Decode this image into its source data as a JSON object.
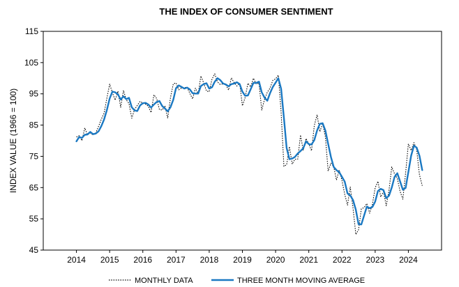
{
  "chart_data": {
    "type": "line",
    "title": "THE INDEX OF CONSUMER SENTIMENT",
    "xlabel": "",
    "ylabel": "INDEX VALUE (1966 = 100)",
    "ylim": [
      45,
      115
    ],
    "xlim": [
      2013.0,
      2025.0
    ],
    "yticks": [
      45,
      55,
      65,
      75,
      85,
      95,
      105,
      115
    ],
    "xticks": [
      2014,
      2015,
      2016,
      2017,
      2018,
      2019,
      2020,
      2021,
      2022,
      2023,
      2024
    ],
    "xtick_labels": [
      "2014",
      "2015",
      "2016",
      "2017",
      "2018",
      "2019",
      "2020",
      "2021",
      "2022",
      "2023",
      "2024"
    ],
    "grid": false,
    "legend_position": "bottom",
    "series": [
      {
        "name": "MONTHLY DATA",
        "style": "dotted",
        "color": "#000000",
        "x": [
          2014.0,
          2014.083,
          2014.167,
          2014.25,
          2014.333,
          2014.417,
          2014.5,
          2014.583,
          2014.667,
          2014.75,
          2014.833,
          2014.917,
          2015.0,
          2015.083,
          2015.167,
          2015.25,
          2015.333,
          2015.417,
          2015.5,
          2015.583,
          2015.667,
          2015.75,
          2015.833,
          2015.917,
          2016.0,
          2016.083,
          2016.167,
          2016.25,
          2016.333,
          2016.417,
          2016.5,
          2016.583,
          2016.667,
          2016.75,
          2016.833,
          2016.917,
          2017.0,
          2017.083,
          2017.167,
          2017.25,
          2017.333,
          2017.417,
          2017.5,
          2017.583,
          2017.667,
          2017.75,
          2017.833,
          2017.917,
          2018.0,
          2018.083,
          2018.167,
          2018.25,
          2018.333,
          2018.417,
          2018.5,
          2018.583,
          2018.667,
          2018.75,
          2018.833,
          2018.917,
          2019.0,
          2019.083,
          2019.167,
          2019.25,
          2019.333,
          2019.417,
          2019.5,
          2019.583,
          2019.667,
          2019.75,
          2019.833,
          2019.917,
          2020.0,
          2020.083,
          2020.167,
          2020.25,
          2020.333,
          2020.417,
          2020.5,
          2020.583,
          2020.667,
          2020.75,
          2020.833,
          2020.917,
          2021.0,
          2021.083,
          2021.167,
          2021.25,
          2021.333,
          2021.417,
          2021.5,
          2021.583,
          2021.667,
          2021.75,
          2021.833,
          2021.917,
          2022.0,
          2022.083,
          2022.167,
          2022.25,
          2022.333,
          2022.417,
          2022.5,
          2022.583,
          2022.667,
          2022.75,
          2022.833,
          2022.917,
          2023.0,
          2023.083,
          2023.167,
          2023.25,
          2023.333,
          2023.417,
          2023.5,
          2023.583,
          2023.667,
          2023.75,
          2023.833,
          2023.917,
          2024.0,
          2024.083,
          2024.167,
          2024.25,
          2024.333,
          2024.417
        ],
        "values": [
          81.2,
          81.6,
          80.0,
          84.1,
          81.9,
          82.5,
          81.8,
          82.5,
          84.6,
          86.9,
          88.8,
          93.6,
          98.1,
          95.4,
          93.0,
          95.9,
          90.7,
          96.1,
          93.1,
          91.9,
          87.2,
          90.0,
          91.3,
          92.6,
          92.0,
          91.7,
          91.0,
          89.0,
          94.7,
          93.5,
          90.0,
          89.8,
          91.2,
          87.2,
          93.8,
          98.2,
          98.5,
          96.3,
          96.9,
          97.0,
          97.1,
          95.1,
          93.4,
          96.8,
          95.1,
          100.7,
          98.5,
          95.9,
          95.7,
          99.7,
          101.4,
          98.8,
          98.0,
          98.2,
          97.9,
          96.2,
          100.1,
          98.6,
          97.5,
          98.3,
          91.2,
          93.8,
          98.4,
          97.2,
          100.0,
          98.2,
          98.4,
          89.8,
          93.2,
          95.5,
          96.8,
          99.3,
          99.8,
          101.0,
          89.1,
          71.8,
          72.3,
          78.1,
          72.5,
          74.1,
          74.1,
          81.8,
          76.9,
          80.7,
          79.0,
          76.8,
          84.9,
          88.3,
          82.9,
          85.5,
          81.2,
          70.3,
          72.8,
          71.7,
          67.4,
          70.6,
          67.2,
          62.8,
          59.4,
          65.2,
          58.4,
          50.0,
          51.5,
          58.2,
          58.6,
          59.9,
          56.8,
          59.7,
          64.9,
          67.0,
          62.0,
          63.7,
          59.2,
          64.2,
          71.6,
          69.4,
          67.9,
          63.8,
          61.3,
          69.7,
          79.0,
          76.9,
          79.4,
          77.2,
          69.1,
          65.6
        ]
      },
      {
        "name": "THREE MONTH MOVING AVERAGE",
        "style": "solid",
        "color": "#1a78c2",
        "x": [
          2014.0,
          2014.083,
          2014.167,
          2014.25,
          2014.333,
          2014.417,
          2014.5,
          2014.583,
          2014.667,
          2014.75,
          2014.833,
          2014.917,
          2015.0,
          2015.083,
          2015.167,
          2015.25,
          2015.333,
          2015.417,
          2015.5,
          2015.583,
          2015.667,
          2015.75,
          2015.833,
          2015.917,
          2016.0,
          2016.083,
          2016.167,
          2016.25,
          2016.333,
          2016.417,
          2016.5,
          2016.583,
          2016.667,
          2016.75,
          2016.833,
          2016.917,
          2017.0,
          2017.083,
          2017.167,
          2017.25,
          2017.333,
          2017.417,
          2017.5,
          2017.583,
          2017.667,
          2017.75,
          2017.833,
          2017.917,
          2018.0,
          2018.083,
          2018.167,
          2018.25,
          2018.333,
          2018.417,
          2018.5,
          2018.583,
          2018.667,
          2018.75,
          2018.833,
          2018.917,
          2019.0,
          2019.083,
          2019.167,
          2019.25,
          2019.333,
          2019.417,
          2019.5,
          2019.583,
          2019.667,
          2019.75,
          2019.833,
          2019.917,
          2020.0,
          2020.083,
          2020.167,
          2020.25,
          2020.333,
          2020.417,
          2020.5,
          2020.583,
          2020.667,
          2020.75,
          2020.833,
          2020.917,
          2021.0,
          2021.083,
          2021.167,
          2021.25,
          2021.333,
          2021.417,
          2021.5,
          2021.583,
          2021.667,
          2021.75,
          2021.833,
          2021.917,
          2022.0,
          2022.083,
          2022.167,
          2022.25,
          2022.333,
          2022.417,
          2022.5,
          2022.583,
          2022.667,
          2022.75,
          2022.833,
          2022.917,
          2023.0,
          2023.083,
          2023.167,
          2023.25,
          2023.333,
          2023.417,
          2023.5,
          2023.583,
          2023.667,
          2023.75,
          2023.833,
          2023.917,
          2024.0,
          2024.083,
          2024.167,
          2024.25,
          2024.333,
          2024.417
        ],
        "values": [
          79.8,
          81.2,
          80.9,
          81.9,
          82.0,
          82.8,
          82.1,
          82.3,
          83.0,
          84.7,
          86.8,
          89.8,
          93.5,
          95.7,
          95.5,
          94.8,
          93.2,
          94.2,
          93.3,
          93.7,
          90.7,
          89.7,
          89.5,
          91.3,
          92.0,
          92.1,
          91.6,
          90.6,
          91.6,
          92.4,
          92.7,
          91.1,
          90.3,
          89.4,
          90.7,
          93.1,
          96.8,
          97.7,
          97.2,
          96.7,
          97.0,
          96.4,
          95.2,
          95.1,
          95.1,
          97.5,
          98.1,
          98.4,
          96.7,
          97.1,
          98.9,
          100.0,
          99.4,
          98.3,
          98.0,
          97.4,
          98.1,
          98.3,
          98.7,
          98.1,
          95.7,
          94.4,
          94.5,
          96.5,
          98.5,
          98.5,
          98.9,
          95.5,
          93.8,
          92.8,
          95.2,
          97.2,
          98.6,
          100.0,
          96.6,
          87.3,
          77.7,
          74.1,
          74.3,
          74.8,
          75.9,
          76.7,
          77.6,
          79.8,
          78.9,
          78.8,
          80.2,
          83.3,
          85.4,
          85.6,
          83.2,
          79.0,
          74.8,
          71.6,
          70.6,
          69.9,
          68.4,
          66.9,
          63.1,
          62.5,
          61.0,
          57.9,
          53.3,
          53.2,
          56.1,
          58.9,
          58.4,
          58.8,
          60.5,
          63.9,
          64.6,
          64.2,
          61.6,
          62.4,
          65.0,
          68.4,
          69.6,
          67.0,
          64.3,
          64.9,
          70.0,
          75.2,
          78.4,
          77.8,
          75.2,
          70.6
        ]
      }
    ]
  }
}
